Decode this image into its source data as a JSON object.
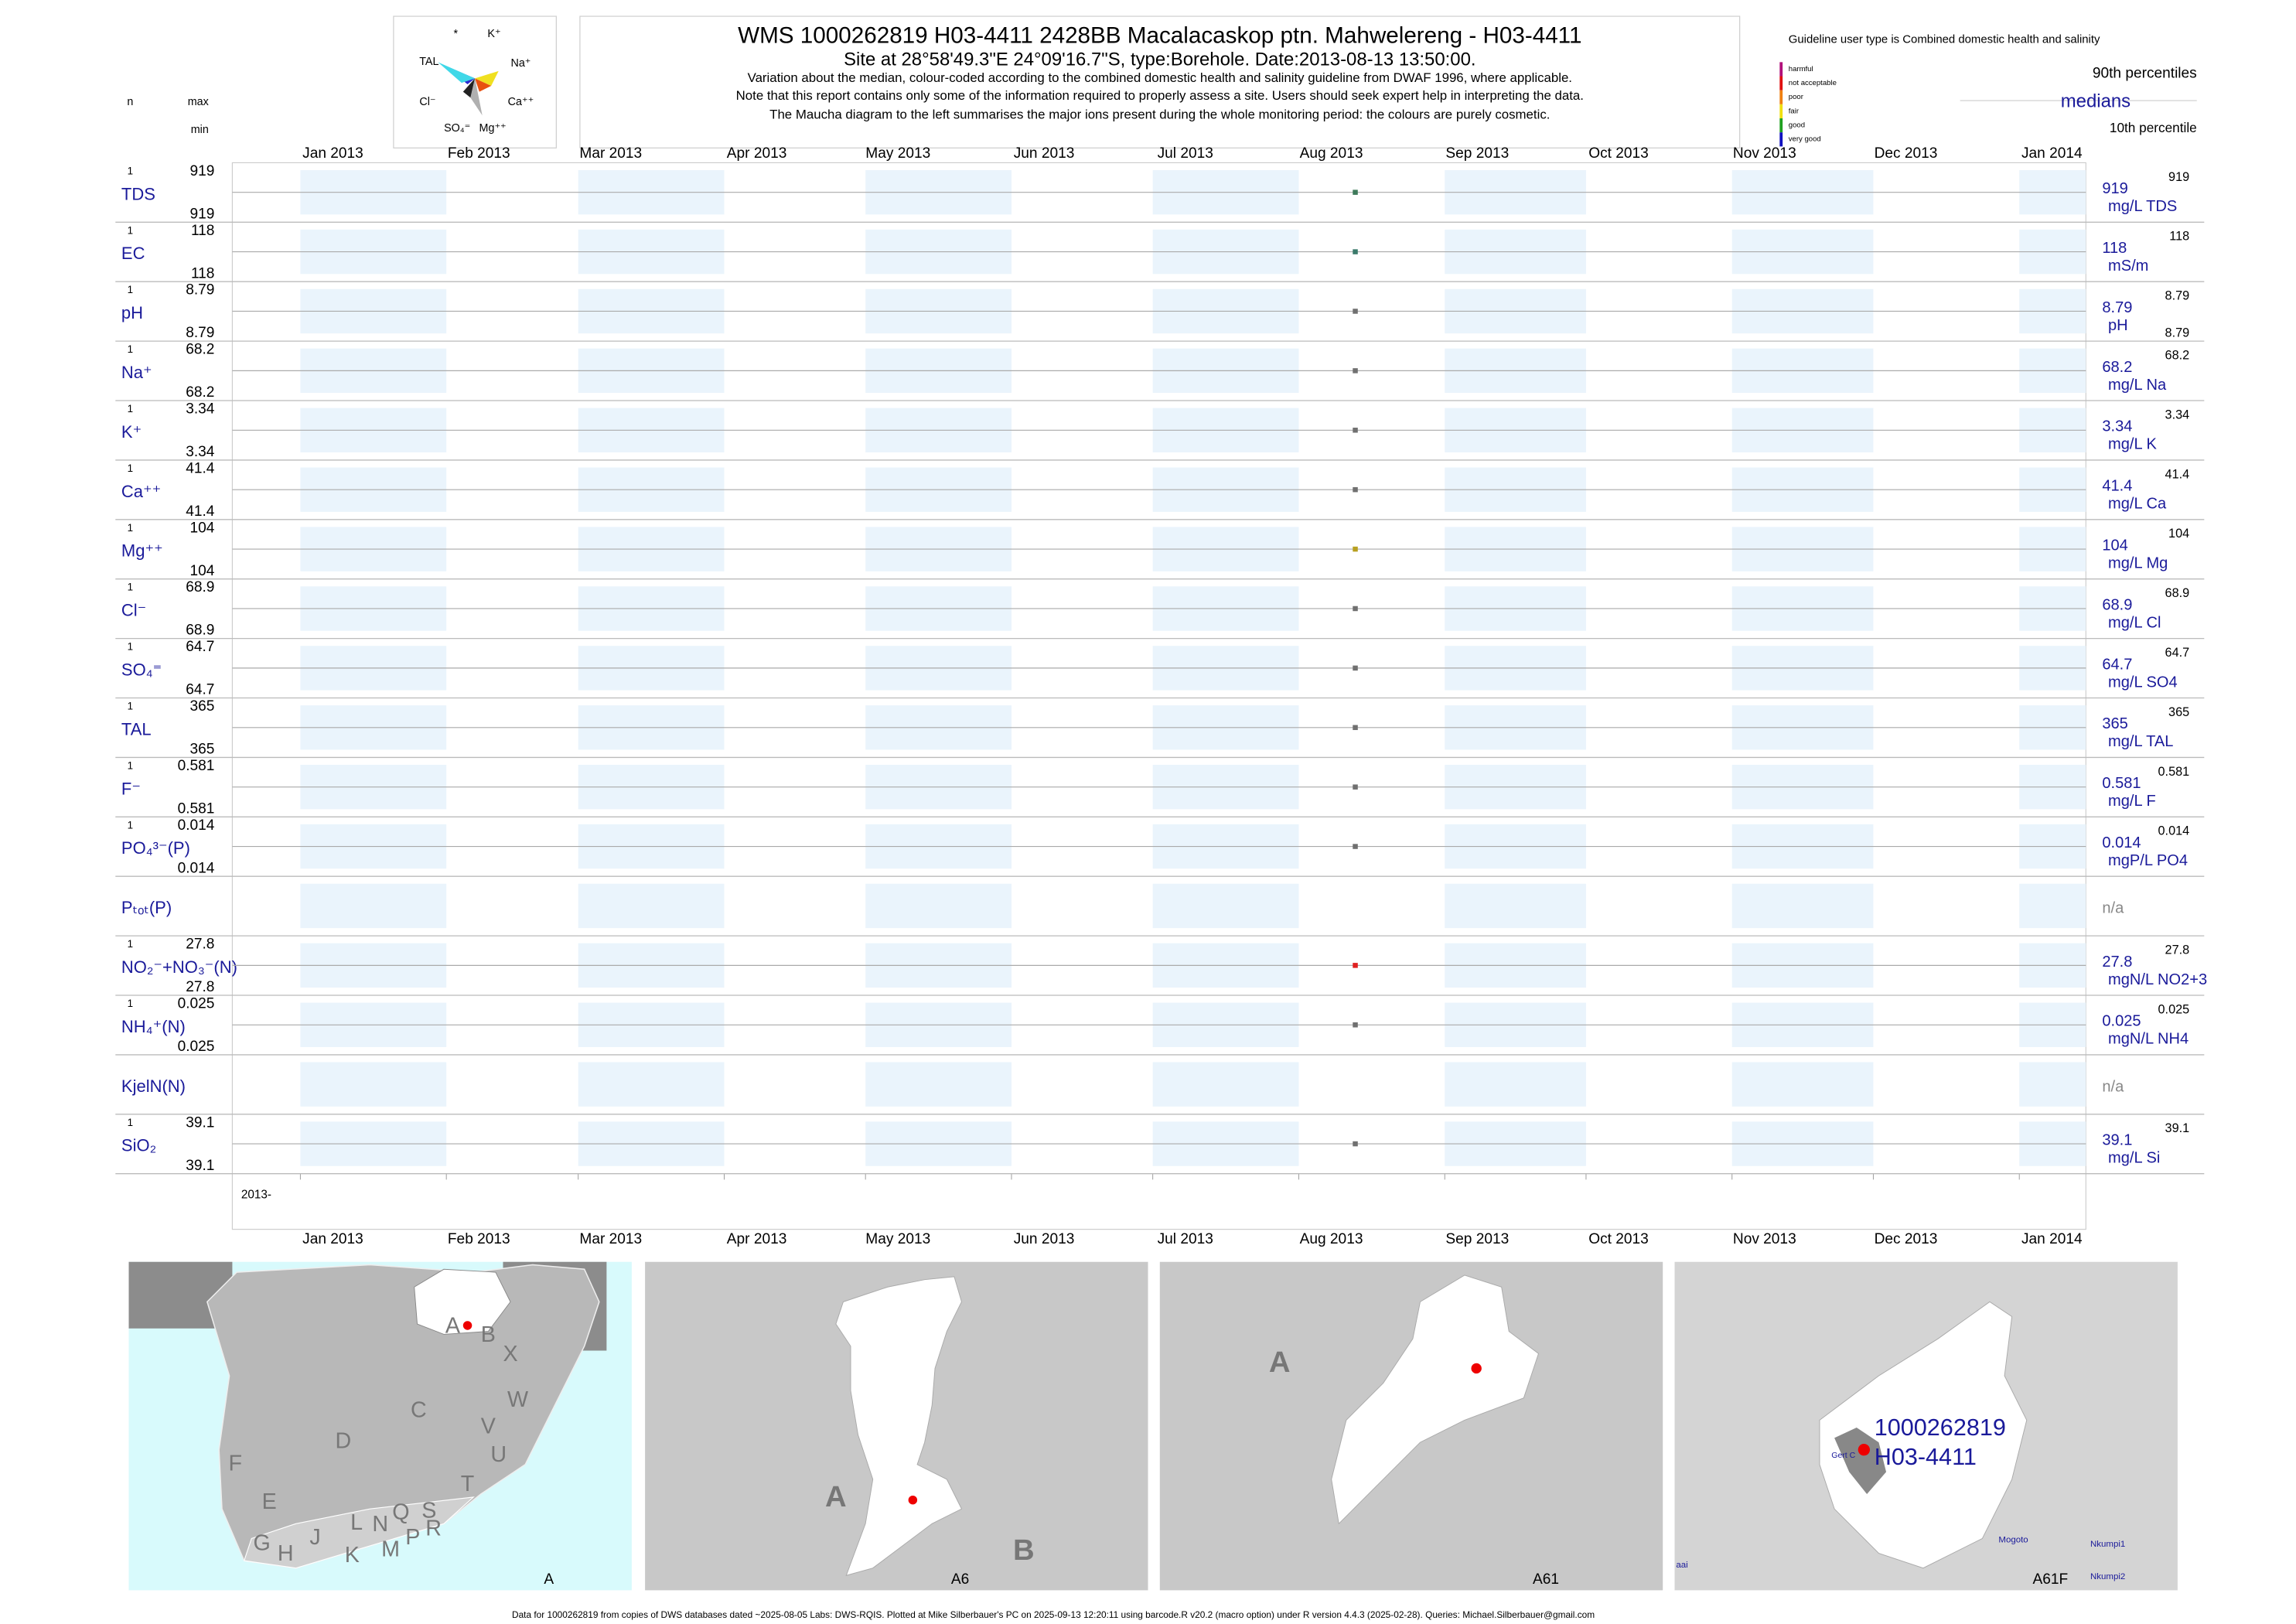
{
  "header": {
    "title": "WMS 1000262819 H03-4411 2428BB Macalacaskop ptn. Mahwelereng - H03-4411",
    "subtitle": "Site at 28°58'49.3\"E 24°09'16.7\"S, type:Borehole. Date:2013-08-13 13:50:00.",
    "notes": [
      "Variation about the median,  colour-coded according to the combined domestic health and salinity guideline from DWAF 1996, where applicable.",
      "Note that this report contains only some of the information required to properly assess a site. Users should seek expert help in interpreting the data.",
      "The Maucha diagram to the left summarises the major ions present during the whole monitoring period: the colours are purely cosmetic."
    ]
  },
  "maucha": {
    "labels": [
      "*",
      "K⁺",
      "TAL",
      "Na⁺",
      "Cl⁻",
      "Ca⁺⁺",
      "SO₄⁼",
      "Mg⁺⁺"
    ]
  },
  "guideline": {
    "text": "Guideline user type is Combined domestic health and salinity",
    "classes": [
      {
        "name": "harmful",
        "color": "#b0107a"
      },
      {
        "name": "not acceptable",
        "color": "#e01010"
      },
      {
        "name": "poor",
        "color": "#f08010"
      },
      {
        "name": "fair",
        "color": "#f0e010"
      },
      {
        "name": "good",
        "color": "#20a020"
      },
      {
        "name": "very good",
        "color": "#1010c0"
      }
    ]
  },
  "legend": {
    "p90": "90th percentiles",
    "median": "medians",
    "p10": "10th percentile"
  },
  "columns": {
    "n": "n",
    "max": "max",
    "min": "min"
  },
  "months": [
    "Jan 2013",
    "Feb 2013",
    "Mar 2013",
    "Apr 2013",
    "May 2013",
    "Jun 2013",
    "Jul 2013",
    "Aug 2013",
    "Sep 2013",
    "Oct 2013",
    "Nov 2013",
    "Dec 2013",
    "Jan 2014"
  ],
  "year_label": "2013-",
  "rows": [
    {
      "label": "TDS",
      "n": "1",
      "max": "919",
      "min": "919",
      "median": "919",
      "p90": "919",
      "unit": "mg/L TDS",
      "color": "#3d7a5a"
    },
    {
      "label": "EC",
      "n": "1",
      "max": "118",
      "min": "118",
      "median": "118",
      "p90": "118",
      "unit": "mS/m",
      "color": "#3a7a6a"
    },
    {
      "label": "pH",
      "n": "1",
      "max": "8.79",
      "min": "8.79",
      "median": "8.79",
      "p90": "8.79",
      "p10": "8.79",
      "unit": "pH",
      "color": "#707070"
    },
    {
      "label": "Na⁺",
      "n": "1",
      "max": "68.2",
      "min": "68.2",
      "median": "68.2",
      "p90": "68.2",
      "unit": "mg/L Na",
      "color": "#707070"
    },
    {
      "label": "K⁺",
      "n": "1",
      "max": "3.34",
      "min": "3.34",
      "median": "3.34",
      "p90": "3.34",
      "unit": "mg/L K",
      "color": "#707070"
    },
    {
      "label": "Ca⁺⁺",
      "n": "1",
      "max": "41.4",
      "min": "41.4",
      "median": "41.4",
      "p90": "41.4",
      "unit": "mg/L Ca",
      "color": "#707070"
    },
    {
      "label": "Mg⁺⁺",
      "n": "1",
      "max": "104",
      "min": "104",
      "median": "104",
      "p90": "104",
      "unit": "mg/L Mg",
      "color": "#b8a020"
    },
    {
      "label": "Cl⁻",
      "n": "1",
      "max": "68.9",
      "min": "68.9",
      "median": "68.9",
      "p90": "68.9",
      "unit": "mg/L Cl",
      "color": "#707070"
    },
    {
      "label": "SO₄⁼",
      "n": "1",
      "max": "64.7",
      "min": "64.7",
      "median": "64.7",
      "p90": "64.7",
      "unit": "mg/L SO4",
      "color": "#707070"
    },
    {
      "label": "TAL",
      "n": "1",
      "max": "365",
      "min": "365",
      "median": "365",
      "p90": "365",
      "unit": "mg/L TAL",
      "color": "#707070"
    },
    {
      "label": "F⁻",
      "n": "1",
      "max": "0.581",
      "min": "0.581",
      "median": "0.581",
      "p90": "0.581",
      "unit": "mg/L F",
      "color": "#707070"
    },
    {
      "label": "PO₄³⁻(P)",
      "n": "1",
      "max": "0.014",
      "min": "0.014",
      "median": "0.014",
      "p90": "0.014",
      "unit": "mgP/L PO4",
      "color": "#707070"
    },
    {
      "label": "Pₜₒₜ(P)",
      "median": "n/a"
    },
    {
      "label": "NO₂⁻+NO₃⁻(N)",
      "n": "1",
      "max": "27.8",
      "min": "27.8",
      "median": "27.8",
      "p90": "27.8",
      "unit": "mgN/L NO2+3",
      "color": "#e02020"
    },
    {
      "label": "NH₄⁺(N)",
      "n": "1",
      "max": "0.025",
      "min": "0.025",
      "median": "0.025",
      "p90": "0.025",
      "unit": "mgN/L NH4",
      "color": "#707070"
    },
    {
      "label": "KjelN(N)",
      "median": "n/a"
    },
    {
      "label": "SiO₂",
      "n": "1",
      "max": "39.1",
      "min": "39.1",
      "median": "39.1",
      "p90": "39.1",
      "unit": "mg/L Si",
      "color": "#707070"
    }
  ],
  "maps": [
    {
      "caption": "A",
      "labels": [
        "A",
        "B",
        "X",
        "W",
        "C",
        "D",
        "V",
        "U",
        "F",
        "T",
        "E",
        "L",
        "N",
        "Q",
        "S",
        "G",
        "H",
        "J",
        "K",
        "M",
        "P",
        "R"
      ]
    },
    {
      "caption": "A6",
      "labels": [
        "A",
        "B"
      ]
    },
    {
      "caption": "A61",
      "labels": [
        "A"
      ]
    },
    {
      "caption": "A61F",
      "labels": [
        "1000262819",
        "H03-4411",
        "Gert C",
        "Mogoto",
        "Nkumpi1",
        "Nkumpi2",
        "aai"
      ]
    }
  ],
  "footer": "Data for 1000262819 from copies of DWS databases dated ~2025-08-05 Labs: DWS-RQIS. Plotted at Mike Silberbauer's PC on 2025-09-13 12:20:11 using barcode.R v20.2 (macro option) under R version 4.4.3 (2025-02-28). Queries: Michael.Silberbauer@gmail.com"
}
